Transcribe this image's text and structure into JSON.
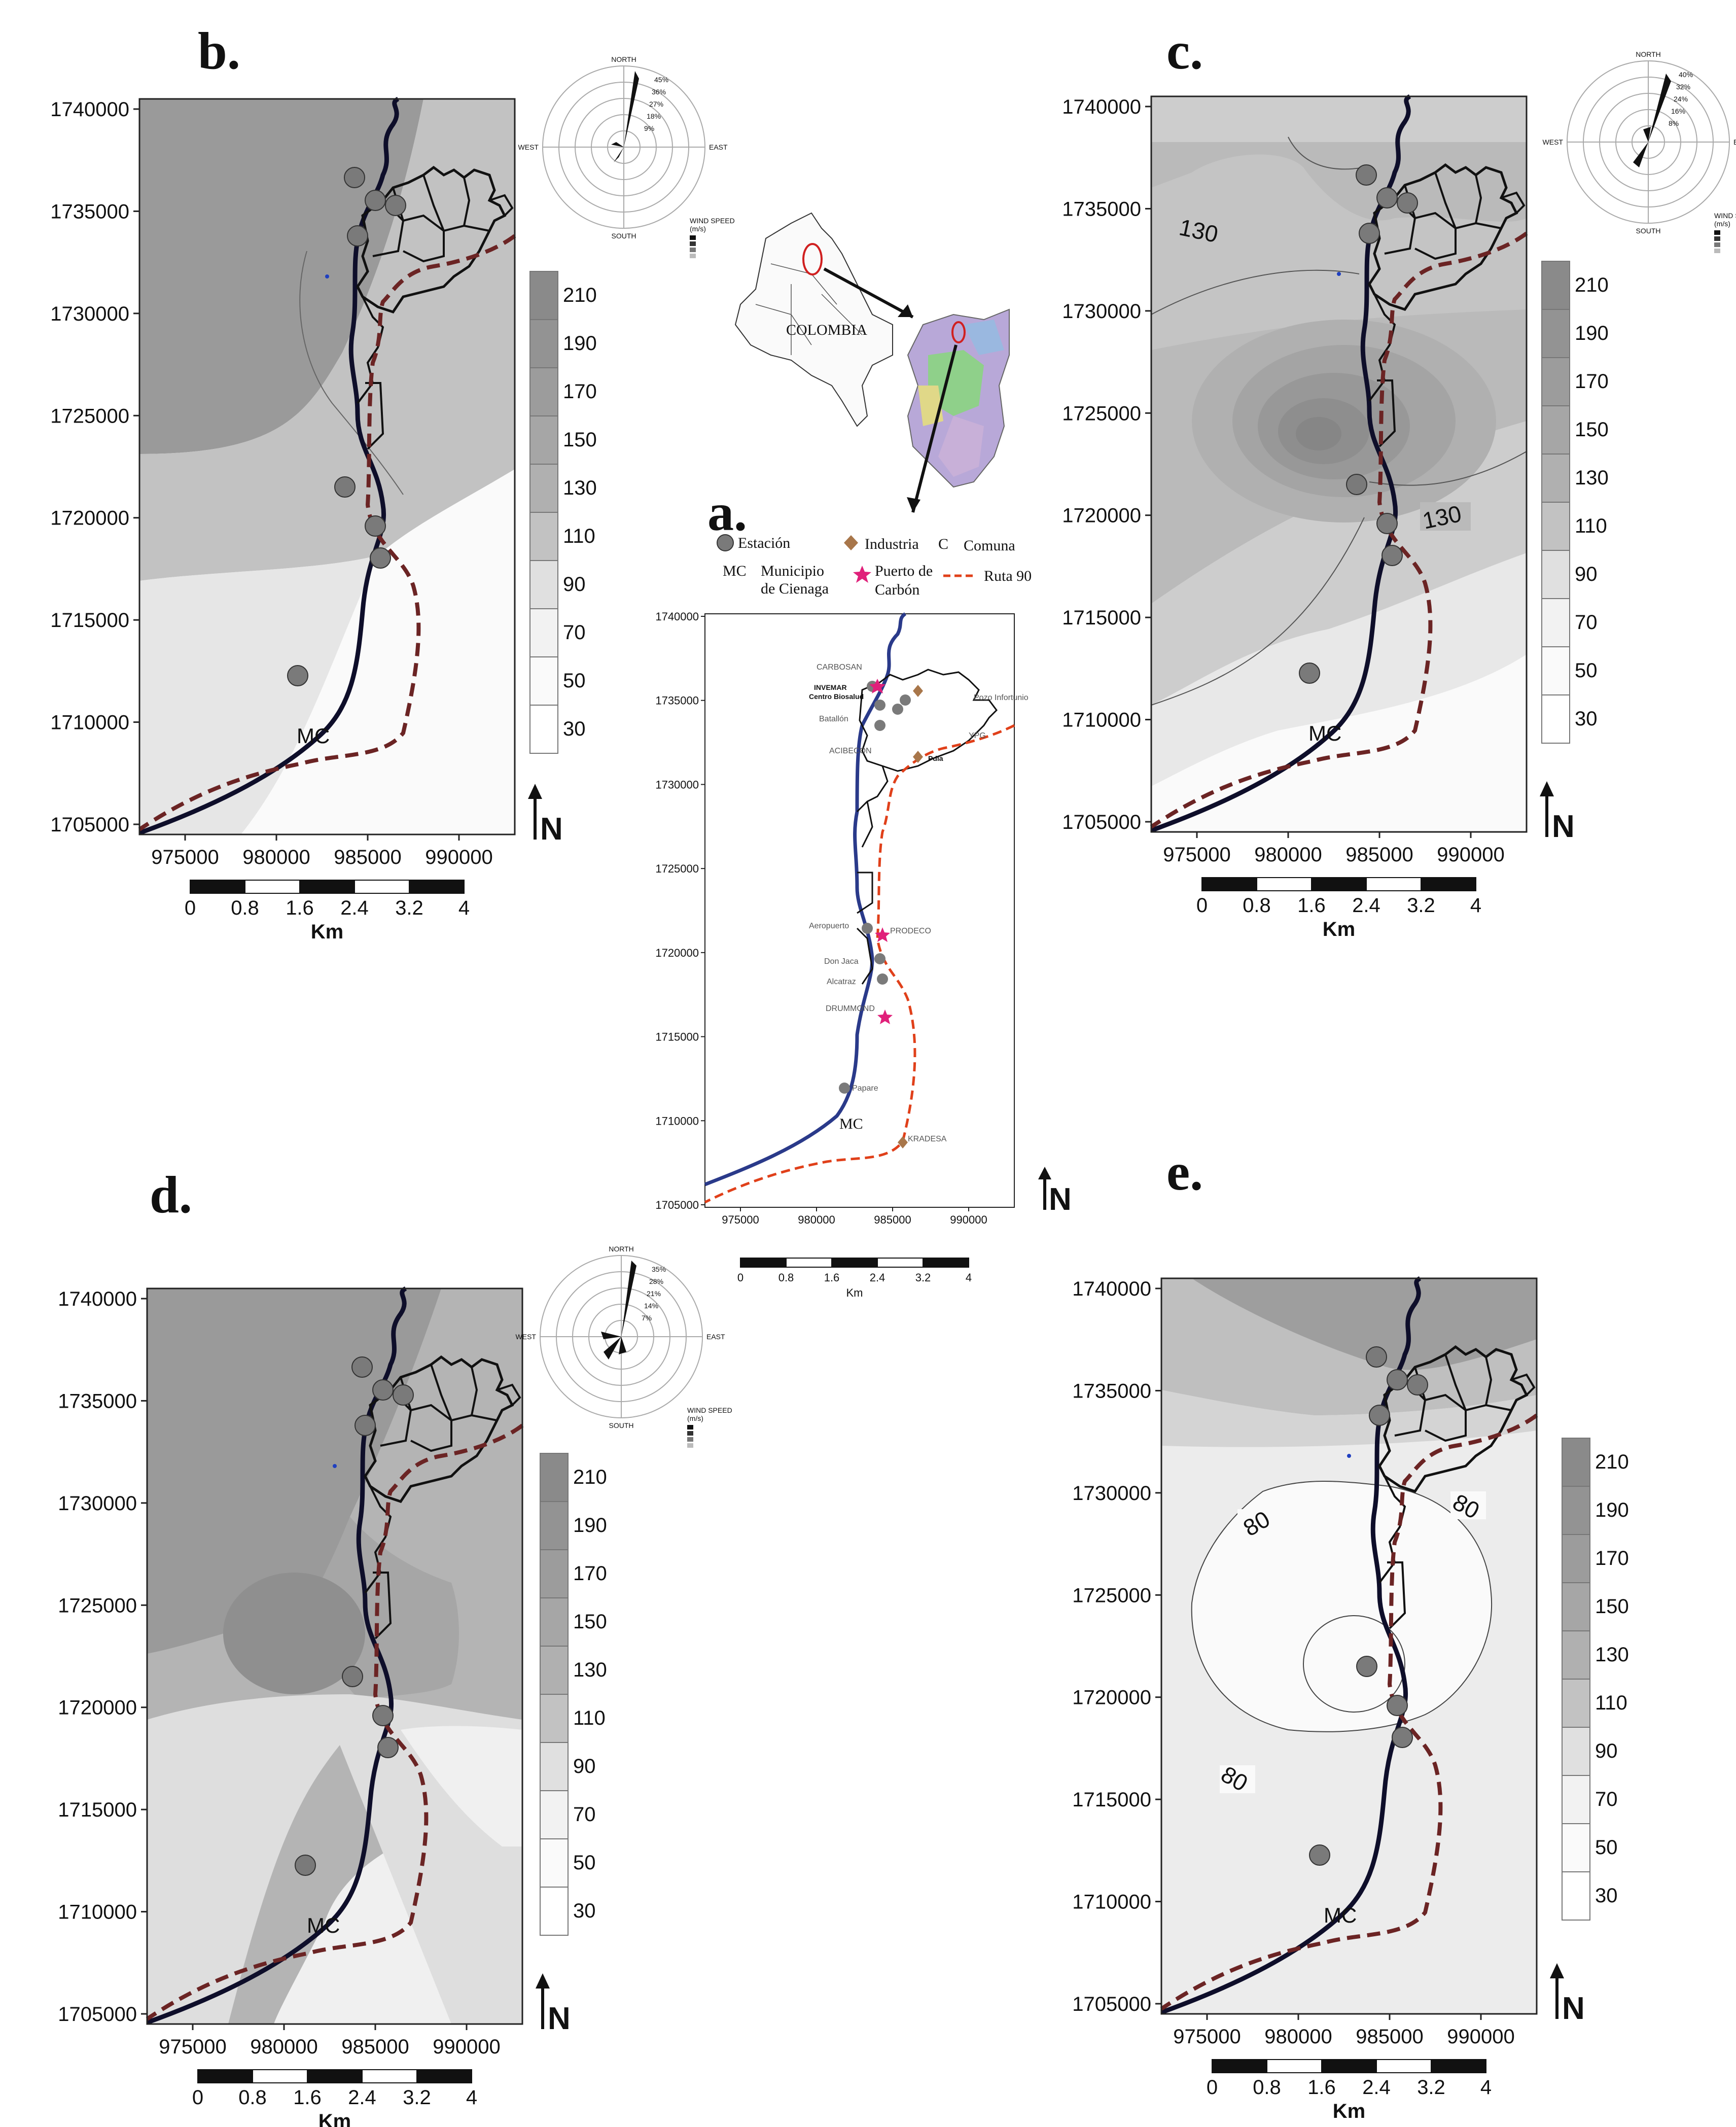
{
  "panels": {
    "b": {
      "title": "b.",
      "town_label": "MC"
    },
    "c": {
      "title": "c.",
      "town_label": "MC",
      "contour_labels": [
        "130",
        "130"
      ]
    },
    "d": {
      "title": "d.",
      "town_label": "MC"
    },
    "e": {
      "title": "e.",
      "town_label": "MC",
      "contour_labels": [
        "80",
        "80",
        "80"
      ]
    },
    "a": {
      "title": "a.",
      "country_label": "COLOMBIA",
      "town_label": "MC",
      "legend": {
        "station": "Estación",
        "industry": "Industria",
        "comuna_prefix": "C",
        "comuna": "Comuna",
        "mc_code": "MC",
        "mc_line1": "Municipio",
        "mc_line2": "de Cienaga",
        "port_line1": "Puerto de",
        "port_line2": "Carbón",
        "route": "Ruta 90"
      }
    }
  },
  "main_axes": {
    "y_ticks": [
      "1740000",
      "1735000",
      "1730000",
      "1725000",
      "1720000",
      "1715000",
      "1710000",
      "1705000"
    ],
    "x_ticks": [
      "975000",
      "980000",
      "985000",
      "990000"
    ]
  },
  "inset_axes": {
    "y_ticks": [
      "1740000",
      "1735000",
      "1730000",
      "1725000",
      "1720000",
      "1715000",
      "1710000",
      "1705000"
    ],
    "x_ticks": [
      "975000",
      "980000",
      "985000",
      "990000"
    ]
  },
  "colorbar": {
    "labels": [
      "210",
      "190",
      "170",
      "150",
      "130",
      "110",
      "90",
      "70",
      "50",
      "30"
    ]
  },
  "scalebar": {
    "labels": [
      "0",
      "0.8",
      "1.6",
      "2.4",
      "3.2",
      "4"
    ],
    "unit": "Km"
  },
  "north": "N",
  "wind_rose": {
    "north": "NORTH",
    "south": "SOUTH",
    "east": "EAST",
    "west": "WEST",
    "legend_head_1": "WIND SPEED",
    "legend_head_2": "(m/s)",
    "b_rings": [
      "45%",
      "36%",
      "27%",
      "18%",
      "9%"
    ],
    "c_rings": [
      "40%",
      "32%",
      "24%",
      "16%",
      "8%"
    ],
    "d_rings": [
      "35%",
      "28%",
      "21%",
      "14%",
      "7%"
    ]
  },
  "colors": {
    "land": "#9a9a9a",
    "coast": "#0e0e2a",
    "route": "#6b2424",
    "route_inset": "#e0401a",
    "station": "#7a7a7a",
    "industry": "#a8764a",
    "port": "#e0207a",
    "inset_coast": "#2a3a8a",
    "colombia_marker": "#d02020"
  }
}
